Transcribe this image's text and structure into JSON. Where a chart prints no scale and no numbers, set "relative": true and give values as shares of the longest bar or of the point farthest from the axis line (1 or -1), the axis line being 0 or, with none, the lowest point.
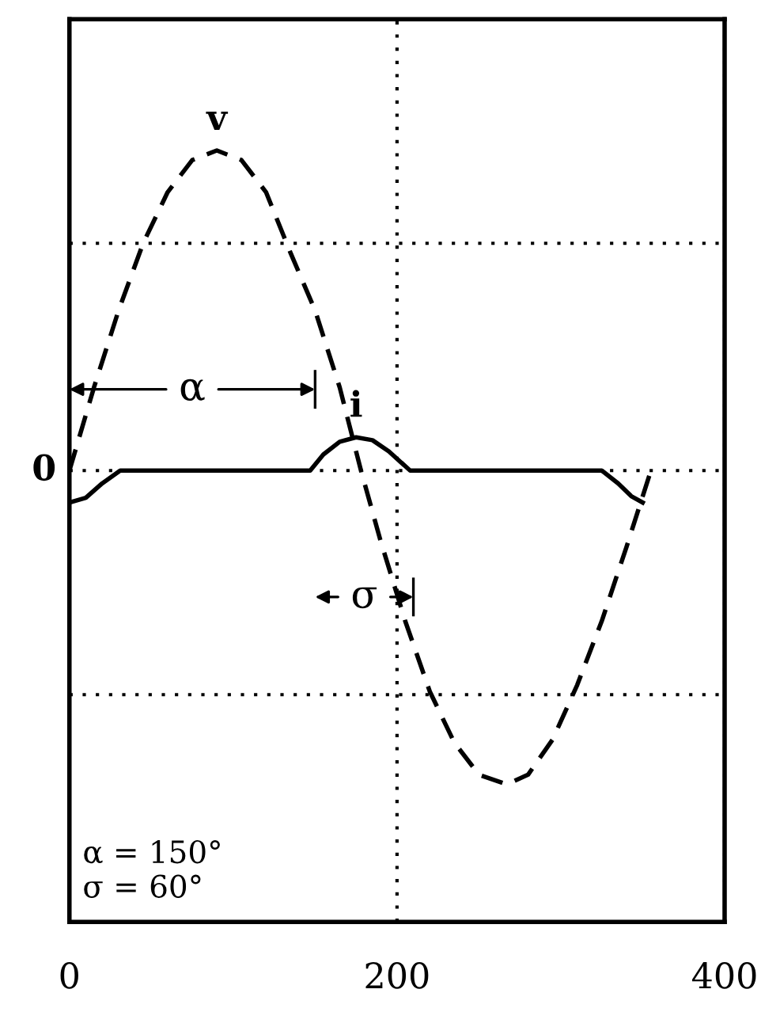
{
  "chart_data": {
    "type": "line",
    "relative": true,
    "xlim": [
      0,
      400
    ],
    "xticks": [
      0,
      200,
      400
    ],
    "grid": "x",
    "series": [
      {
        "name": "v",
        "color": "#000000",
        "line_style": "dashed",
        "x": [
          0,
          15,
          30,
          45,
          60,
          75,
          90,
          105,
          120,
          135,
          150,
          165,
          178,
          190,
          205,
          220,
          235,
          250,
          267,
          280,
          295,
          310,
          325,
          340,
          355
        ],
        "values": [
          0,
          0.26,
          0.5,
          0.71,
          0.87,
          0.97,
          1,
          0.97,
          0.87,
          0.68,
          0.5,
          0.26,
          0,
          -0.22,
          -0.47,
          -0.69,
          -0.85,
          -0.95,
          -0.98,
          -0.95,
          -0.84,
          -0.67,
          -0.47,
          -0.24,
          0
        ]
      },
      {
        "name": "i",
        "color": "#000000",
        "line_style": "solid",
        "x": [
          0,
          10,
          20,
          31,
          147,
          155,
          165,
          175,
          185,
          195,
          208,
          325,
          335,
          343,
          350
        ],
        "values": [
          -0.1,
          -0.085,
          -0.04,
          0,
          0,
          0.05,
          0.09,
          0.104,
          0.095,
          0.06,
          0,
          0,
          -0.04,
          -0.08,
          -0.1
        ]
      }
    ],
    "ref_lines": [
      {
        "axis": "y",
        "value": 0,
        "label": "0",
        "line_style": "dotted"
      },
      {
        "axis": "y",
        "value": 0.71,
        "line_style": "dotted"
      },
      {
        "axis": "y",
        "value": -0.7,
        "line_style": "dotted"
      }
    ],
    "annotations": [
      "α",
      "σ",
      "α = 150°\nσ = 60°"
    ]
  }
}
